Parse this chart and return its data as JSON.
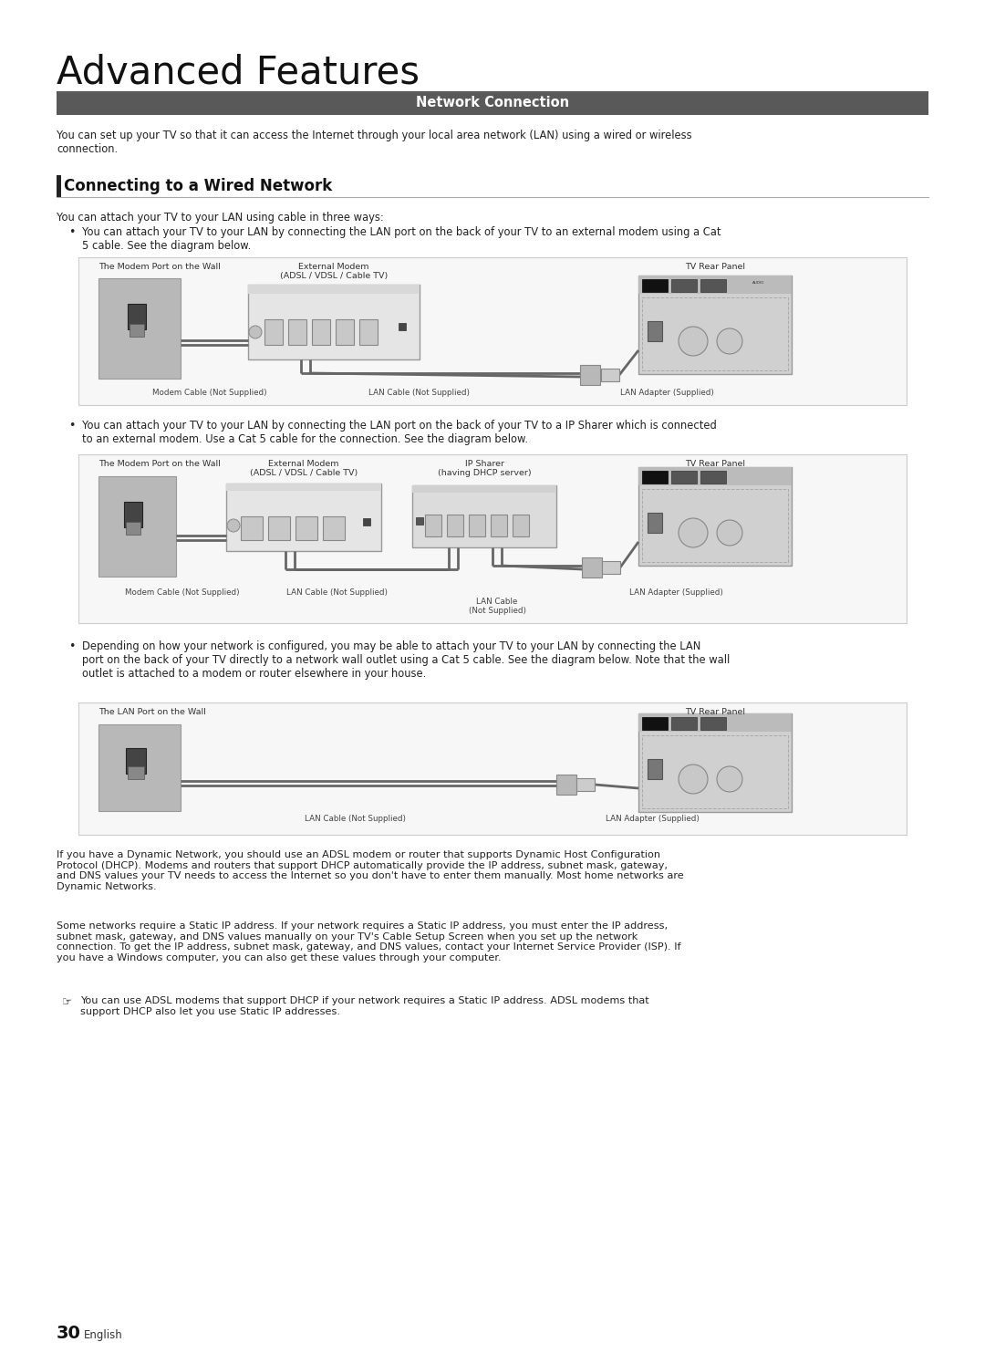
{
  "title": "Advanced Features",
  "section_header": "Network Connection",
  "section_header_bg": "#595959",
  "section_header_color": "#ffffff",
  "subsection_title": "Connecting to a Wired Network",
  "intro_text": "You can set up your TV so that it can access the Internet through your local area network (LAN) using a wired or wireless\nconnection.",
  "subsection_text": "You can attach your TV to your LAN using cable in three ways:",
  "bullet1_text": "You can attach your TV to your LAN by connecting the LAN port on the back of your TV to an external modem using a Cat\n5 cable. See the diagram below.",
  "bullet2_text": "You can attach your TV to your LAN by connecting the LAN port on the back of your TV to a IP Sharer which is connected\nto an external modem. Use a Cat 5 cable for the connection. See the diagram below.",
  "bullet3_text": "Depending on how your network is configured, you may be able to attach your TV to your LAN by connecting the LAN\nport on the back of your TV directly to a network wall outlet using a Cat 5 cable. See the diagram below. Note that the wall\noutlet is attached to a modem or router elsewhere in your house.",
  "footer_text1": "If you have a Dynamic Network, you should use an ADSL modem or router that supports Dynamic Host Configuration\nProtocol (DHCP). Modems and routers that support DHCP automatically provide the IP address, subnet mask, gateway,\nand DNS values your TV needs to access the Internet so you don't have to enter them manually. Most home networks are\nDynamic Networks.",
  "footer_text2": "Some networks require a Static IP address. If your network requires a Static IP address, you must enter the IP address,\nsubnet mask, gateway, and DNS values manually on your TV's Cable Setup Screen when you set up the network\nconnection. To get the IP address, subnet mask, gateway, and DNS values, contact your Internet Service Provider (ISP). If\nyou have a Windows computer, you can also get these values through your computer.",
  "footer_note": "You can use ADSL modems that support DHCP if your network requires a Static IP address. ADSL modems that\nsupport DHCP also let you use Static IP addresses.",
  "page_number": "30",
  "page_lang": "English",
  "bg_color": "#ffffff",
  "text_color": "#222222",
  "header_bg": "#595959",
  "header_fg": "#ffffff",
  "diagram_bg": "#f7f7f7",
  "diagram_border": "#cccccc",
  "wall_color": "#b8b8b8",
  "modem_color": "#e5e5e5",
  "tv_color": "#d0d0d0",
  "cable_color": "#666666",
  "port_dark": "#333333",
  "port_mid": "#555555",
  "adapter_color": "#aaaaaa"
}
